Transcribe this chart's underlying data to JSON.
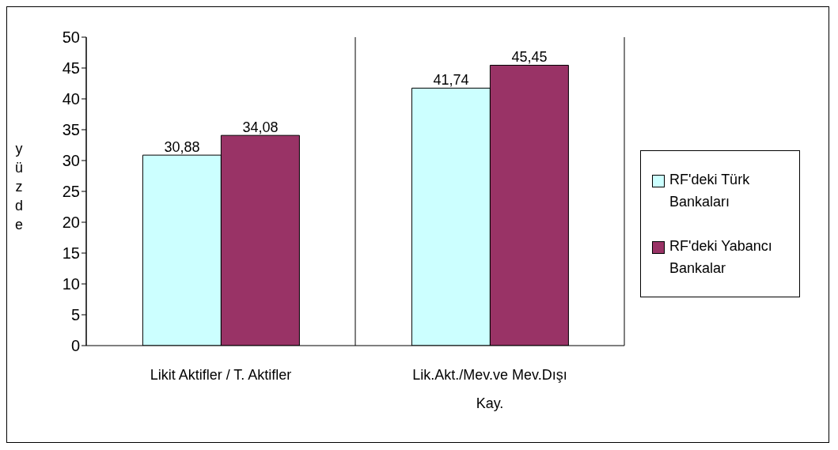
{
  "chart_data": {
    "type": "bar",
    "ylabel": "yüzde",
    "categories": [
      "Likit Aktifler / T. Aktifler",
      "Lik.Akt./Mev.ve Mev.Dışı Kay."
    ],
    "series": [
      {
        "name": "RF'deki Türk Bankaları",
        "color": "#ccffff",
        "values": [
          30.88,
          41.74
        ],
        "value_labels": [
          "30,88",
          "41,74"
        ]
      },
      {
        "name": "RF'deki Yabancı Bankalar",
        "color": "#993366",
        "values": [
          34.08,
          45.45
        ],
        "value_labels": [
          "34,08",
          "45,45"
        ]
      }
    ],
    "ylim": [
      0,
      50
    ],
    "yticks": [
      0,
      5,
      10,
      15,
      20,
      25,
      30,
      35,
      40,
      45,
      50
    ],
    "grid": "x",
    "legend": "right"
  }
}
